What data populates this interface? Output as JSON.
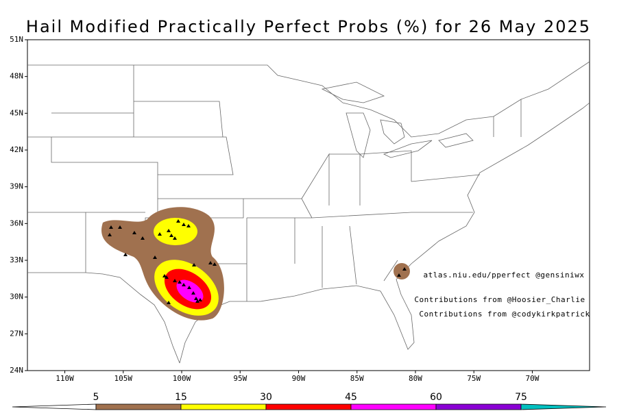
{
  "title": "Hail Modified Practically Perfect Probs (%) for 26 May 2025",
  "map": {
    "lon_range": [
      -113.2,
      -65.1
    ],
    "lat_range": [
      24,
      51
    ],
    "lat_ticks": [
      {
        "value": 24,
        "label": "24N"
      },
      {
        "value": 27,
        "label": "27N"
      },
      {
        "value": 30,
        "label": "30N"
      },
      {
        "value": 33,
        "label": "33N"
      },
      {
        "value": 36,
        "label": "36N"
      },
      {
        "value": 39,
        "label": "39N"
      },
      {
        "value": 42,
        "label": "42N"
      },
      {
        "value": 45,
        "label": "45N"
      },
      {
        "value": 48,
        "label": "48N"
      },
      {
        "value": 51,
        "label": "51N"
      }
    ],
    "lon_ticks": [
      {
        "value": -110,
        "label": "110W"
      },
      {
        "value": -105,
        "label": "105W"
      },
      {
        "value": -100,
        "label": "100W"
      },
      {
        "value": -95,
        "label": "95W"
      },
      {
        "value": -90,
        "label": "90W"
      },
      {
        "value": -85,
        "label": "85W"
      },
      {
        "value": -80,
        "label": "80W"
      },
      {
        "value": -75,
        "label": "75W"
      },
      {
        "value": -70,
        "label": "70W"
      }
    ]
  },
  "annotations": [
    "atlas.niu.edu/pperfect @gensiniwx",
    "Contributions from @Hoosier_Charlie",
    "Contributions from @codykirkpatrick"
  ],
  "colorbar": {
    "levels": [
      5,
      15,
      30,
      45,
      60,
      75
    ],
    "colors": [
      "#ffffff",
      "#a0714f",
      "#ffff00",
      "#ff0000",
      "#ff00ff",
      "#8a00d4",
      "#00c0c0"
    ]
  }
}
